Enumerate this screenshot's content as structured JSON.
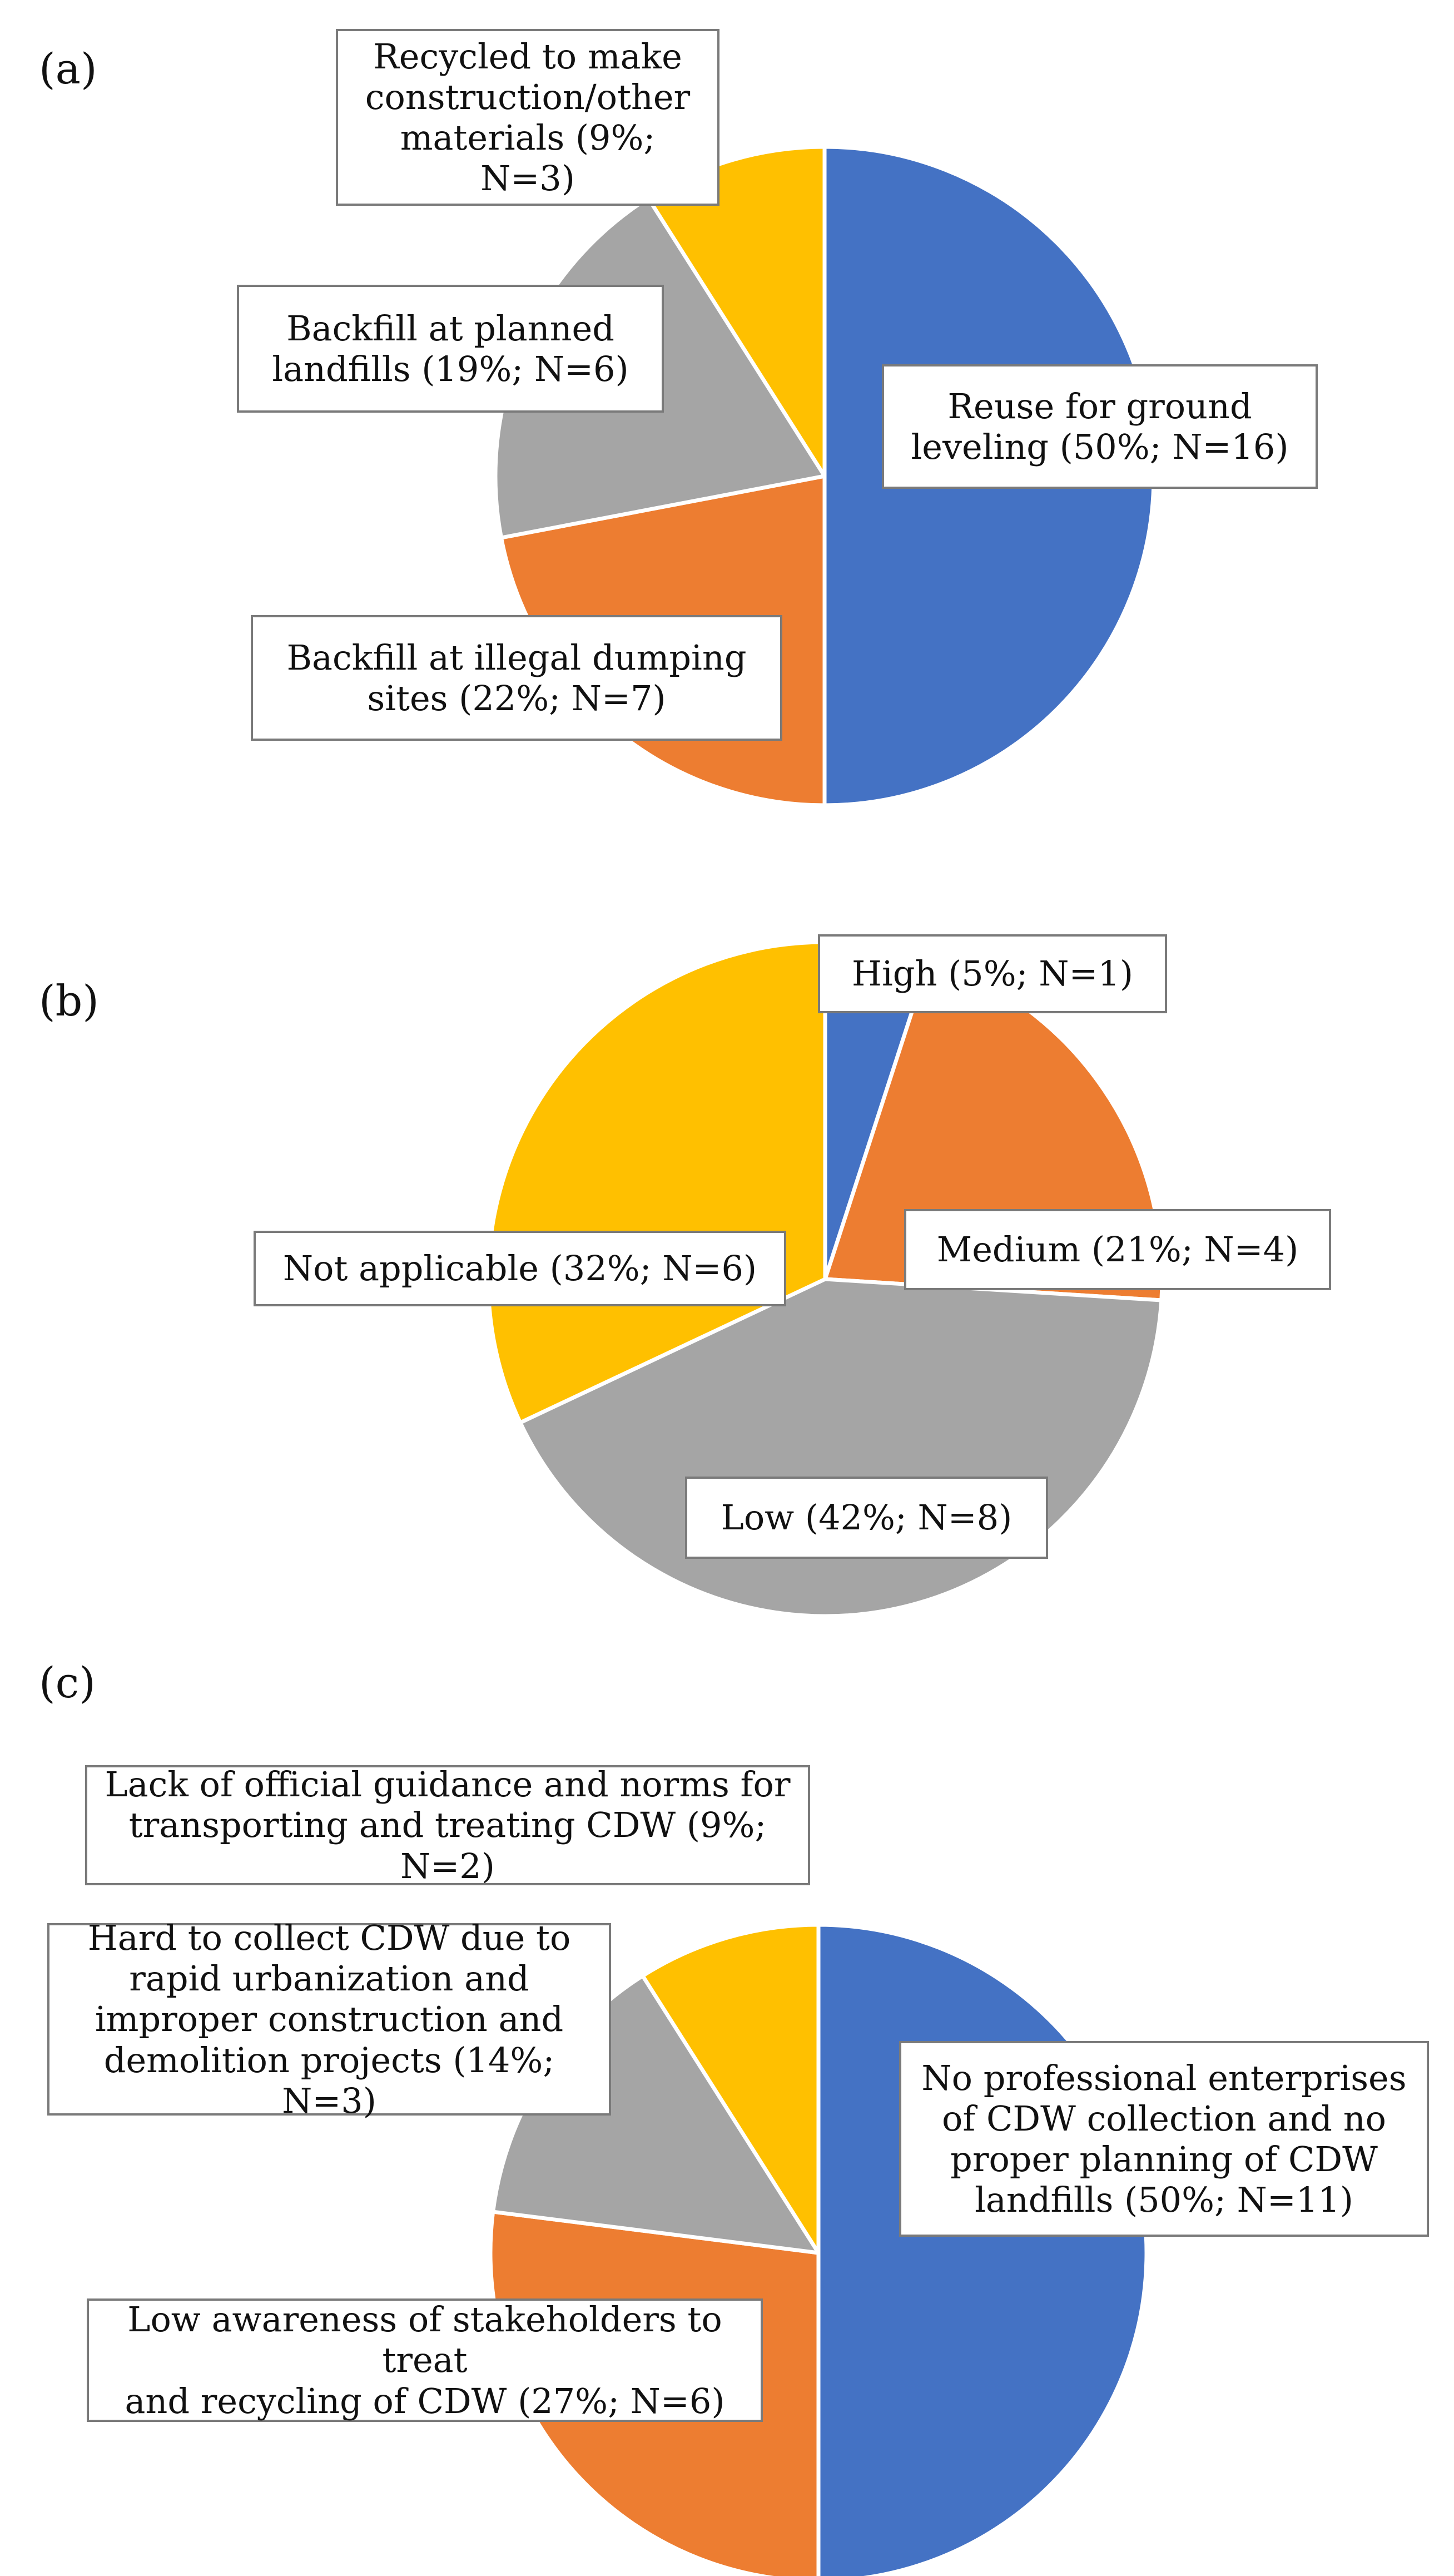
{
  "figure": {
    "panels": [
      "a",
      "b",
      "c"
    ]
  },
  "chart_data": [
    {
      "type": "pie",
      "panel_label": "(a)",
      "start_angle": "12 o'clock, clockwise",
      "slices": [
        {
          "label": "Reuse for ground leveling (50%; N=16)",
          "lines": [
            "Reuse for ground",
            "leveling (50%; N=16)"
          ],
          "percent": 50,
          "n": 16,
          "color": "#4472C4"
        },
        {
          "label": "Backfill at illegal dumping sites (22%; N=7)",
          "lines": [
            "Backfill at illegal dumping",
            "sites  (22%; N=7)"
          ],
          "percent": 22,
          "n": 7,
          "color": "#ED7D31"
        },
        {
          "label": "Backfill at planned landfills (19%; N=6)",
          "lines": [
            "Backfill at planned",
            "landfills  (19%; N=6)"
          ],
          "percent": 19,
          "n": 6,
          "color": "#A5A5A5"
        },
        {
          "label": "Recycled to make construction/other materials (9%; N=3)",
          "lines": [
            "Recycled to make",
            "construction/other",
            "materials  (9%; N=3)"
          ],
          "percent": 9,
          "n": 3,
          "color": "#FFC000"
        }
      ]
    },
    {
      "type": "pie",
      "panel_label": "(b)",
      "start_angle": "12 o'clock, clockwise",
      "slices": [
        {
          "label": "High (5%; N=1)",
          "lines": [
            "High (5%; N=1)"
          ],
          "percent": 5,
          "n": 1,
          "color": "#4472C4"
        },
        {
          "label": "Medium (21%; N=4)",
          "lines": [
            "Medium (21%; N=4)"
          ],
          "percent": 21,
          "n": 4,
          "color": "#ED7D31"
        },
        {
          "label": "Low (42%; N=8)",
          "lines": [
            "Low (42%; N=8)"
          ],
          "percent": 42,
          "n": 8,
          "color": "#A5A5A5"
        },
        {
          "label": "Not applicable (32%; N=6)",
          "lines": [
            "Not applicable (32%; N=6)"
          ],
          "percent": 32,
          "n": 6,
          "color": "#FFC000"
        }
      ]
    },
    {
      "type": "pie",
      "panel_label": "(c)",
      "start_angle": "12 o'clock, clockwise",
      "slices": [
        {
          "label": "No professional enterprises of CDW collection and no proper planning of CDW landfills (50%; N=11)",
          "lines": [
            "No professional enterprises",
            "of  CDW collection and no",
            "proper planning of CDW",
            "landfills (50%; N=11)"
          ],
          "percent": 50,
          "n": 11,
          "color": "#4472C4"
        },
        {
          "label": "Low awareness of stakeholders to treat and recycling of CDW (27%; N=6)",
          "lines": [
            "Low awareness of stakeholders to treat",
            "and recycling of CDW (27%; N=6)"
          ],
          "percent": 27,
          "n": 6,
          "color": "#ED7D31"
        },
        {
          "label": "Hard to collect CDW due to rapid urbanization and improper construction and demolition projects (14%; N=3)",
          "lines": [
            "Hard to collect CDW due to",
            "rapid urbanization and",
            "improper construction and",
            "demolition projects (14%; N=3)"
          ],
          "percent": 14,
          "n": 3,
          "color": "#A5A5A5"
        },
        {
          "label": "Lack of official guidance and norms for transporting and treating CDW (9%; N=2)",
          "lines": [
            "Lack of official guidance and norms for",
            "transporting and treating CDW (9%; N=2)"
          ],
          "percent": 9,
          "n": 2,
          "color": "#FFC000"
        }
      ]
    }
  ]
}
